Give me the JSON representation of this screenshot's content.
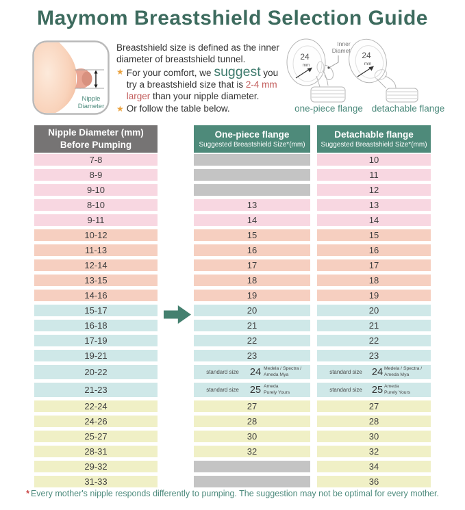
{
  "title": "Maymom Breastshield Selection Guide",
  "intro": {
    "line1": "Breastshield size is defined as the inner diameter of breastshield tunnel.",
    "star": "★",
    "b1": {
      "pre": "For your comfort, we ",
      "emphasis": "suggest",
      "mid": " you try a breastshield size that is ",
      "highlight": "2-4 mm larger",
      "post": " than your nipple diameter."
    },
    "b2": "Or follow the table below."
  },
  "nipple_diagram": {
    "label1": "Nipple",
    "label2": "Diameter"
  },
  "flanges": {
    "inner1": "Inner",
    "inner2": "Diameter",
    "size": "24",
    "unit": "mm",
    "cap_left": "one-piece flange",
    "cap_right": "detachable flange"
  },
  "table": {
    "headers": {
      "col1_line1": "Nipple Diameter (mm)",
      "col1_line2": "Before Pumping",
      "col2_title": "One-piece flange",
      "col2_sub": "Suggested Breastshield Size*(mm)",
      "col3_title": "Detachable flange",
      "col3_sub": "Suggested Breastshield Size*(mm)"
    },
    "rows": [
      {
        "range": "7-8",
        "color": "pink",
        "one": "",
        "det": "10"
      },
      {
        "range": "8-9",
        "color": "pink",
        "one": "",
        "det": "11"
      },
      {
        "range": "9-10",
        "color": "pink",
        "one": "",
        "det": "12"
      },
      {
        "range": "8-10",
        "color": "pink",
        "one": "13",
        "det": "13"
      },
      {
        "range": "9-11",
        "color": "pink",
        "one": "14",
        "det": "14"
      },
      {
        "range": "10-12",
        "color": "peach",
        "one": "15",
        "det": "15"
      },
      {
        "range": "11-13",
        "color": "peach",
        "one": "16",
        "det": "16"
      },
      {
        "range": "12-14",
        "color": "peach",
        "one": "17",
        "det": "17"
      },
      {
        "range": "13-15",
        "color": "peach",
        "one": "18",
        "det": "18"
      },
      {
        "range": "14-16",
        "color": "peach",
        "one": "19",
        "det": "19"
      },
      {
        "range": "15-17",
        "color": "teal",
        "one": "20",
        "det": "20",
        "arrow": true
      },
      {
        "range": "16-18",
        "color": "teal",
        "one": "21",
        "det": "21"
      },
      {
        "range": "17-19",
        "color": "teal",
        "one": "22",
        "det": "22"
      },
      {
        "range": "19-21",
        "color": "teal",
        "one": "23",
        "det": "23"
      },
      {
        "range": "20-22",
        "color": "teal",
        "tall": true,
        "one": {
          "pre": "standard size",
          "size": "24",
          "brand": [
            "Medela / Spectra /",
            "Ameda Mya"
          ]
        },
        "det": {
          "pre": "standard size",
          "size": "24",
          "brand": [
            "Medela / Spectra /",
            "Ameda Mya"
          ]
        }
      },
      {
        "range": "21-23",
        "color": "teal",
        "tall": true,
        "one": {
          "pre": "standard size",
          "size": "25",
          "brand": [
            "Ameda",
            "Purely Yours"
          ]
        },
        "det": {
          "pre": "standard size",
          "size": "25",
          "brand": [
            "Ameda",
            "Purely Yours"
          ]
        }
      },
      {
        "range": "22-24",
        "color": "yellow",
        "one": "27",
        "det": "27"
      },
      {
        "range": "24-26",
        "color": "yellow",
        "one": "28",
        "det": "28"
      },
      {
        "range": "25-27",
        "color": "yellow",
        "one": "30",
        "det": "30"
      },
      {
        "range": "28-31",
        "color": "yellow",
        "one": "32",
        "det": "32"
      },
      {
        "range": "29-32",
        "color": "yellow",
        "one": "",
        "det": "34"
      },
      {
        "range": "31-33",
        "color": "yellow",
        "one": "",
        "det": "36"
      }
    ]
  },
  "footnote": {
    "mark": "*",
    "text": "Every mother's nipple responds differently to pumping. The suggestion may not be optimal for every mother."
  },
  "colors": {
    "pink": "#f8d7e1",
    "peach": "#f6cfc0",
    "teal": "#cfe8e8",
    "yellow": "#f0f0c6",
    "blank": "#c4c4c4",
    "header_gray": "#767474",
    "header_teal": "#4e8a7a",
    "title": "#3d6b5e",
    "accent": "#3d7a6c",
    "red": "#c25d5c",
    "star": "#eaa23e",
    "arrow": "#44806f",
    "caption": "#4c8a7c",
    "cell_text": "#3f3f3f"
  }
}
